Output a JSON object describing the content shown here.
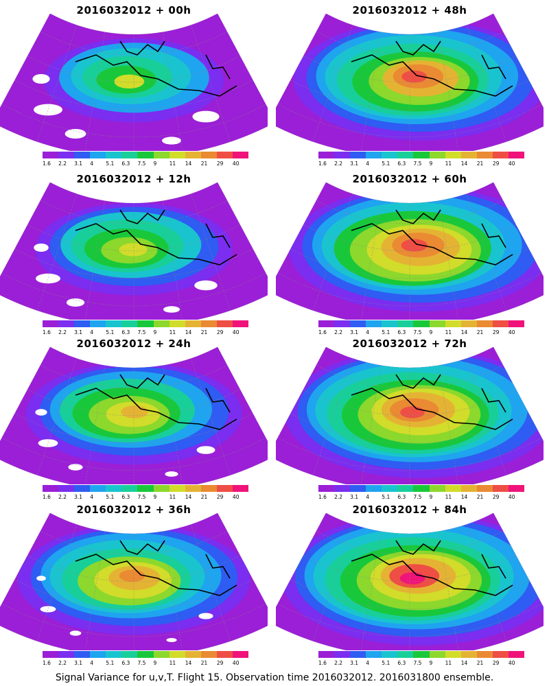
{
  "footer": "Signal Variance for u,v,T. Flight 15. Observation time 2016032012. 2016031800 ensemble.",
  "colorbar": {
    "labels": [
      "1.6",
      "2.2",
      "3.1",
      "4",
      "5.1",
      "6.3",
      "7.5",
      "9",
      "11",
      "14",
      "21",
      "29",
      "40"
    ],
    "colors": [
      "#9b1fd6",
      "#7b2df0",
      "#2f5cf2",
      "#1fa4ef",
      "#19c4cf",
      "#18cf9a",
      "#19c83a",
      "#8cd82c",
      "#d2dc2a",
      "#e5b333",
      "#ea8a33",
      "#ef4e45",
      "#f0137a"
    ]
  },
  "panels": [
    {
      "title": "2016032012 + 00h",
      "level": 0.3
    },
    {
      "title": "2016032012 + 48h",
      "level": 0.75
    },
    {
      "title": "2016032012 + 12h",
      "level": 0.4
    },
    {
      "title": "2016032012 + 60h",
      "level": 0.82
    },
    {
      "title": "2016032012 + 24h",
      "level": 0.52
    },
    {
      "title": "2016032012 + 72h",
      "level": 0.86
    },
    {
      "title": "2016032012 + 36h",
      "level": 0.62
    },
    {
      "title": "2016032012 + 84h",
      "level": 0.9
    }
  ]
}
